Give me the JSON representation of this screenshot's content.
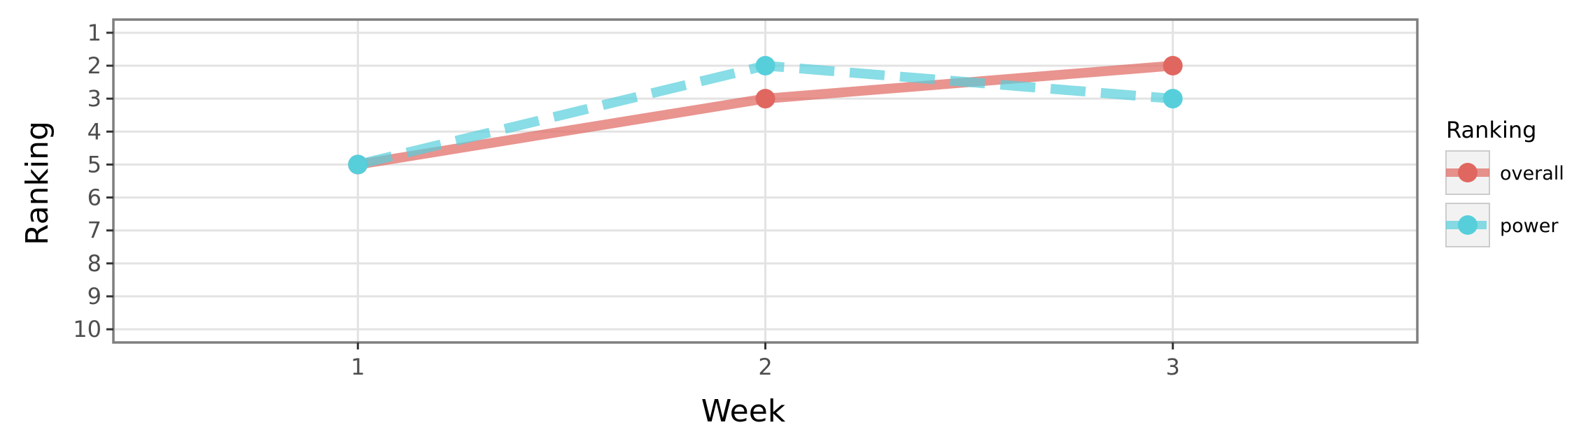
{
  "chart_data": {
    "type": "line",
    "xlabel": "Week",
    "ylabel": "Ranking",
    "x": [
      1,
      2,
      3
    ],
    "xticks": [
      "1",
      "2",
      "3"
    ],
    "xlim": [
      0.4,
      3.6
    ],
    "yticks": [
      "1",
      "2",
      "3",
      "4",
      "5",
      "6",
      "7",
      "8",
      "9",
      "10"
    ],
    "ylim": [
      10.4,
      0.6
    ],
    "y_axis_reversed": true,
    "grid": true,
    "legend": {
      "title": "Ranking",
      "position": "right"
    },
    "series": [
      {
        "name": "overall",
        "values": [
          5,
          3,
          2
        ],
        "color": "#E06760",
        "line_style": "solid"
      },
      {
        "name": "power",
        "values": [
          5,
          2,
          3
        ],
        "color": "#56CFDB",
        "line_style": "dashed"
      }
    ]
  }
}
